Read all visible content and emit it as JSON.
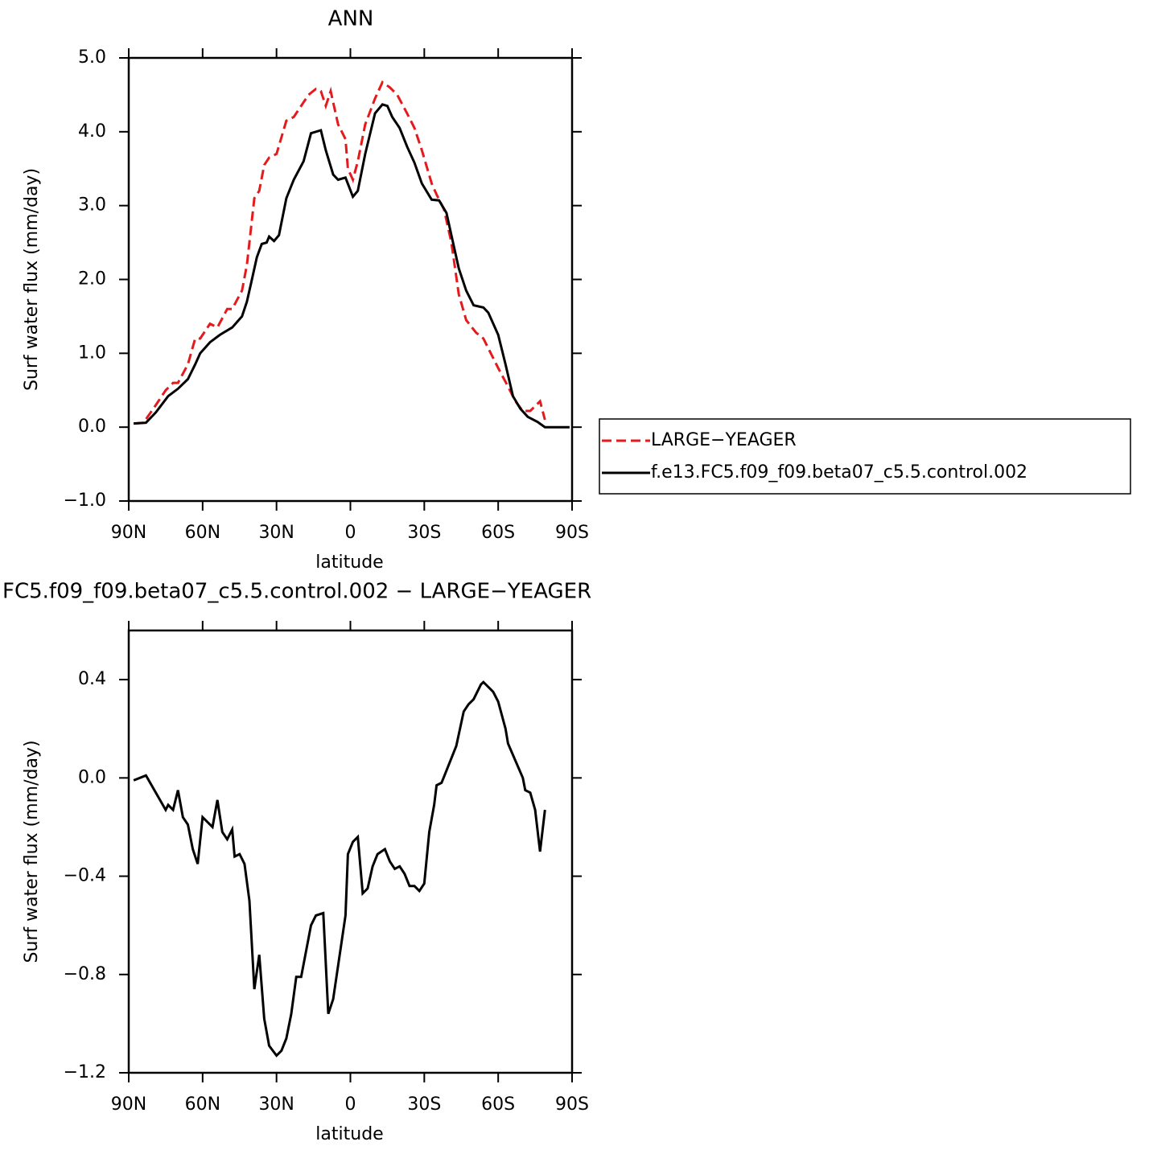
{
  "chart_data": [
    {
      "type": "line",
      "title": "ANN",
      "xlabel": "latitude",
      "ylabel": "Surf water flux (mm/day)",
      "xlim": [
        90,
        -90
      ],
      "ylim": [
        -1.0,
        5.0
      ],
      "xticks": [
        {
          "value": 90,
          "label": "90N"
        },
        {
          "value": 60,
          "label": "60N"
        },
        {
          "value": 30,
          "label": "30N"
        },
        0,
        {
          "value": -30,
          "label": "30S"
        },
        {
          "value": -60,
          "label": "60S"
        },
        {
          "value": -90,
          "label": "90S"
        }
      ],
      "yticks": [
        {
          "value": -1.0,
          "label": "−1.0"
        },
        {
          "value": 0,
          "label": "0.0"
        },
        {
          "value": 1.0,
          "label": "1.0"
        },
        {
          "value": 2.0,
          "label": "2.0"
        },
        {
          "value": 3.0,
          "label": "3.0"
        },
        {
          "value": 4.0,
          "label": "4.0"
        },
        {
          "value": 5.0,
          "label": "5.0"
        }
      ],
      "legend": "right",
      "series": [
        {
          "name": "LARGE−YEAGER",
          "color": "#e41a1c",
          "style": "dashed",
          "x": [
            88,
            84,
            79,
            75,
            72,
            70,
            66,
            63,
            61,
            57,
            54,
            50,
            48,
            44,
            42,
            39,
            37,
            35,
            33,
            30,
            26,
            23,
            20,
            17,
            14,
            12,
            10,
            8,
            5,
            2,
            1,
            -1,
            -3,
            -6,
            -10,
            -13,
            -16,
            -19,
            -23,
            -26,
            -29,
            -33,
            -35,
            -38,
            -41,
            -44,
            -47,
            -51,
            -54,
            -57,
            -60,
            -64,
            -67,
            -70,
            -73,
            -77,
            -79
          ],
          "values": [
            0.05,
            0.06,
            0.3,
            0.5,
            0.6,
            0.6,
            0.85,
            1.2,
            1.2,
            1.4,
            1.35,
            1.6,
            1.6,
            1.85,
            2.2,
            3.1,
            3.2,
            3.55,
            3.65,
            3.7,
            4.15,
            4.2,
            4.35,
            4.5,
            4.58,
            4.55,
            4.35,
            4.55,
            4.1,
            3.9,
            3.5,
            3.35,
            3.6,
            4.1,
            4.45,
            4.67,
            4.6,
            4.5,
            4.25,
            4.05,
            3.75,
            3.3,
            3.15,
            2.95,
            2.5,
            1.8,
            1.45,
            1.28,
            1.2,
            1.0,
            0.8,
            0.55,
            0.35,
            0.22,
            0.22,
            0.35,
            0.1
          ]
        },
        {
          "name": "f.e13.FC5.f09_f09.beta07_c5.5.control.002",
          "color": "#000000",
          "style": "solid",
          "x": [
            88,
            83,
            79,
            74,
            70,
            66,
            63,
            61,
            57,
            53,
            48,
            44,
            42,
            40,
            38,
            36,
            34,
            33,
            31,
            29,
            26,
            23,
            19,
            16,
            12,
            10,
            7,
            5,
            2,
            -1,
            -3,
            -6,
            -10,
            -13,
            -15,
            -17,
            -20,
            -23,
            -26,
            -29,
            -33,
            -36,
            -39,
            -41,
            -44,
            -47,
            -50,
            -54,
            -56,
            -60,
            -63,
            -66,
            -69,
            -72,
            -76,
            -79,
            -85,
            -89
          ],
          "values": [
            0.05,
            0.06,
            0.2,
            0.42,
            0.52,
            0.65,
            0.85,
            1.0,
            1.15,
            1.25,
            1.35,
            1.5,
            1.7,
            2.0,
            2.3,
            2.48,
            2.5,
            2.58,
            2.52,
            2.6,
            3.1,
            3.35,
            3.6,
            3.98,
            4.02,
            3.75,
            3.42,
            3.35,
            3.38,
            3.12,
            3.2,
            3.7,
            4.25,
            4.37,
            4.35,
            4.2,
            4.05,
            3.8,
            3.58,
            3.3,
            3.08,
            3.07,
            2.9,
            2.6,
            2.15,
            1.85,
            1.65,
            1.62,
            1.55,
            1.25,
            0.85,
            0.42,
            0.25,
            0.14,
            0.07,
            0.0,
            0.0,
            0.0
          ]
        }
      ]
    },
    {
      "type": "line",
      "title": "FC5.f09_f09.beta07_c5.5.control.002 − LARGE−YEAGER",
      "xlabel": "latitude",
      "ylabel": "Surf water flux (mm/day)",
      "xlim": [
        90,
        -90
      ],
      "ylim": [
        -1.2,
        0.6
      ],
      "xticks": [
        {
          "value": 90,
          "label": "90N"
        },
        {
          "value": 60,
          "label": "60N"
        },
        {
          "value": 30,
          "label": "30N"
        },
        0,
        {
          "value": -30,
          "label": "30S"
        },
        {
          "value": -60,
          "label": "60S"
        },
        {
          "value": -90,
          "label": "90S"
        }
      ],
      "yticks": [
        {
          "value": -1.2,
          "label": "−1.2"
        },
        {
          "value": -0.8,
          "label": "−0.8"
        },
        {
          "value": -0.4,
          "label": "−0.4"
        },
        {
          "value": 0,
          "label": "0.0"
        },
        0.4
      ],
      "color": "#000000",
      "x": [
        88,
        83,
        79,
        75,
        74,
        72,
        70,
        68,
        66,
        64,
        62,
        60,
        56,
        54,
        52,
        50,
        48,
        47,
        45,
        43,
        41,
        39,
        37,
        35,
        33,
        30,
        28,
        26,
        24,
        22,
        20,
        16,
        14,
        11,
        9,
        7,
        2,
        1,
        -1,
        -3,
        -5,
        -7,
        -9,
        -11,
        -14,
        -16,
        -18,
        -20,
        -22,
        -24,
        -26,
        -28,
        -30,
        -32,
        -34,
        -35,
        -37,
        -39,
        -43,
        -46,
        -48,
        -50,
        -53,
        -54,
        -57,
        -58,
        -60,
        -63,
        -64,
        -70,
        -71,
        -73,
        -75,
        -77,
        -79
      ],
      "values": [
        -0.01,
        0.01,
        -0.06,
        -0.13,
        -0.11,
        -0.13,
        -0.05,
        -0.16,
        -0.19,
        -0.29,
        -0.35,
        -0.16,
        -0.2,
        -0.09,
        -0.22,
        -0.25,
        -0.21,
        -0.32,
        -0.31,
        -0.35,
        -0.5,
        -0.86,
        -0.72,
        -0.98,
        -1.09,
        -1.13,
        -1.11,
        -1.06,
        -0.96,
        -0.81,
        -0.81,
        -0.6,
        -0.56,
        -0.55,
        -0.96,
        -0.9,
        -0.56,
        -0.31,
        -0.26,
        -0.24,
        -0.47,
        -0.45,
        -0.36,
        -0.31,
        -0.29,
        -0.34,
        -0.37,
        -0.36,
        -0.39,
        -0.44,
        -0.44,
        -0.46,
        -0.43,
        -0.22,
        -0.11,
        -0.03,
        -0.02,
        0.03,
        0.13,
        0.27,
        0.3,
        0.32,
        0.38,
        0.39,
        0.36,
        0.35,
        0.31,
        0.2,
        0.14,
        0.0,
        -0.05,
        -0.06,
        -0.13,
        -0.3,
        -0.13
      ]
    }
  ]
}
